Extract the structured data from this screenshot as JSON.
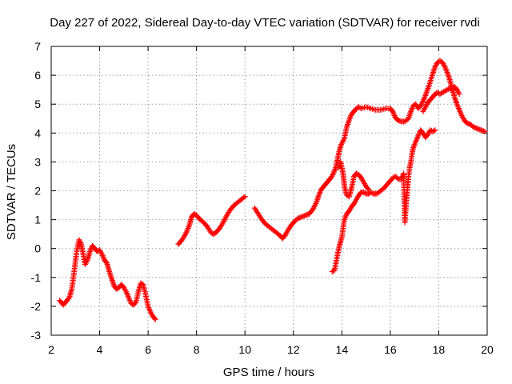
{
  "chart_data": {
    "type": "scatter",
    "title": "Day 227 of 2022, Sidereal Day-to-day VTEC variation (SDTVAR) for receiver rvdi",
    "xlabel": "GPS time / hours",
    "ylabel": "SDTVAR / TECUs",
    "xlim": [
      2,
      20
    ],
    "ylim": [
      -3,
      7
    ],
    "xticks": [
      "2",
      "4",
      "6",
      "8",
      "10",
      "12",
      "14",
      "16",
      "18",
      "20"
    ],
    "yticks": [
      "-3",
      "-2",
      "-1",
      "0",
      "1",
      "2",
      "3",
      "4",
      "5",
      "6",
      "7"
    ],
    "grid": true,
    "marker": "plus",
    "color": "#ff0000",
    "series": [
      {
        "x": [
          2.35,
          2.5,
          2.6,
          2.75,
          2.85,
          2.95,
          3.05,
          3.15,
          3.22,
          3.3,
          3.4,
          3.5,
          3.6,
          3.7,
          3.8,
          3.9,
          4.0,
          4.1,
          4.2,
          4.3,
          4.4,
          4.5,
          4.6,
          4.7,
          4.8,
          4.9,
          5.0,
          5.1,
          5.2,
          5.3,
          5.4,
          5.5,
          5.6,
          5.7,
          5.8,
          5.9,
          6.0,
          6.1,
          6.2,
          6.3
        ],
        "y": [
          -1.8,
          -1.95,
          -1.85,
          -1.7,
          -1.4,
          -0.8,
          -0.1,
          0.3,
          0.2,
          -0.1,
          -0.55,
          -0.4,
          -0.1,
          0.1,
          0.0,
          -0.1,
          -0.05,
          -0.2,
          -0.4,
          -0.5,
          -0.8,
          -1.05,
          -1.3,
          -1.4,
          -1.35,
          -1.25,
          -1.35,
          -1.5,
          -1.7,
          -1.9,
          -1.95,
          -1.85,
          -1.5,
          -1.2,
          -1.25,
          -1.6,
          -2.0,
          -2.2,
          -2.35,
          -2.45
        ]
      },
      {
        "x": [
          7.25,
          7.4,
          7.55,
          7.7,
          7.8,
          7.9,
          8.0,
          8.15,
          8.3,
          8.45,
          8.6,
          8.7,
          8.8,
          8.95,
          9.1,
          9.25,
          9.4,
          9.55,
          9.7,
          9.85,
          10.0
        ],
        "y": [
          0.15,
          0.3,
          0.5,
          0.8,
          1.1,
          1.2,
          1.15,
          1.0,
          0.9,
          0.75,
          0.55,
          0.5,
          0.55,
          0.7,
          0.9,
          1.15,
          1.35,
          1.5,
          1.6,
          1.7,
          1.8
        ]
      },
      {
        "x": [
          10.4,
          10.55,
          10.7,
          10.85,
          11.0,
          11.15,
          11.3,
          11.45,
          11.55,
          11.65,
          11.75,
          11.9,
          12.05,
          12.2,
          12.35,
          12.5,
          12.65,
          12.8,
          12.95,
          13.05,
          13.15,
          13.25,
          13.35,
          13.45,
          13.55,
          13.65,
          13.75,
          13.8,
          13.85,
          13.9,
          13.95,
          14.0,
          14.1,
          14.2,
          14.3,
          14.4,
          14.5,
          14.6,
          14.7,
          14.8,
          15.0,
          15.2,
          15.4,
          15.6,
          15.8,
          16.0,
          16.1,
          16.2,
          16.3,
          16.45,
          16.6,
          16.75,
          16.85,
          16.95,
          17.05,
          17.15,
          17.3,
          17.45,
          17.6,
          17.75,
          17.85,
          17.95,
          18.05,
          18.15,
          18.25,
          18.35,
          18.45,
          18.55,
          18.65,
          18.75,
          18.85,
          18.95,
          19.05,
          19.15,
          19.3,
          19.45,
          19.6,
          19.75,
          19.9
        ],
        "y": [
          1.4,
          1.2,
          1.0,
          0.85,
          0.75,
          0.65,
          0.55,
          0.45,
          0.35,
          0.45,
          0.6,
          0.8,
          0.95,
          1.05,
          1.1,
          1.15,
          1.2,
          1.35,
          1.6,
          1.85,
          2.05,
          2.15,
          2.25,
          2.35,
          2.45,
          2.6,
          2.8,
          3.0,
          3.2,
          3.4,
          3.55,
          3.65,
          3.8,
          4.2,
          4.45,
          4.65,
          4.75,
          4.85,
          4.9,
          4.85,
          4.9,
          4.85,
          4.8,
          4.8,
          4.85,
          4.85,
          4.75,
          4.55,
          4.45,
          4.4,
          4.4,
          4.5,
          4.75,
          4.95,
          5.0,
          4.85,
          5.0,
          5.3,
          5.65,
          6.05,
          6.3,
          6.45,
          6.5,
          6.45,
          6.3,
          6.1,
          5.85,
          5.55,
          5.25,
          5.0,
          4.8,
          4.6,
          4.45,
          4.35,
          4.3,
          4.2,
          4.15,
          4.1,
          4.05
        ]
      },
      {
        "x": [
          13.6,
          13.7,
          13.8,
          13.9,
          14.0,
          14.1,
          14.2,
          14.3,
          14.4,
          14.5,
          14.6,
          14.7,
          14.8,
          14.9,
          15.0,
          15.1,
          15.2,
          15.3,
          15.45,
          15.6,
          15.75,
          15.9,
          16.05,
          16.2,
          16.35,
          16.45,
          16.55,
          16.6,
          16.65,
          16.7,
          16.75,
          16.8,
          16.85,
          16.9,
          16.95,
          17.05,
          17.15,
          17.25,
          17.35,
          17.45,
          17.55,
          17.65,
          17.75,
          17.85
        ],
        "y": [
          -0.8,
          -0.75,
          -0.3,
          0.1,
          0.4,
          1.0,
          1.2,
          1.3,
          1.45,
          1.55,
          1.7,
          1.85,
          1.95,
          1.95,
          1.9,
          1.9,
          1.95,
          1.9,
          1.9,
          2.0,
          2.1,
          2.25,
          2.4,
          2.5,
          2.4,
          2.4,
          2.6,
          0.9,
          1.5,
          2.0,
          2.5,
          2.8,
          3.0,
          3.3,
          3.5,
          3.7,
          3.9,
          4.1,
          4.0,
          3.85,
          3.95,
          4.1,
          4.05,
          4.1
        ]
      },
      {
        "x": [
          13.85,
          13.95,
          14.05,
          14.12,
          14.2,
          14.3,
          14.4,
          14.5,
          14.6,
          14.7,
          14.8,
          14.9,
          15.0,
          15.1
        ],
        "y": [
          2.8,
          3.0,
          2.6,
          2.1,
          1.85,
          1.8,
          2.1,
          2.5,
          2.6,
          2.55,
          2.45,
          2.3,
          2.15,
          2.05
        ]
      },
      {
        "x": [
          17.35,
          17.45,
          17.55,
          17.65,
          17.75,
          17.85,
          17.95,
          18.05,
          18.15,
          18.25,
          18.35,
          18.45,
          18.55,
          18.65,
          18.75,
          18.85
        ],
        "y": [
          4.75,
          4.9,
          5.05,
          5.15,
          5.25,
          5.35,
          5.4,
          5.35,
          5.4,
          5.45,
          5.5,
          5.55,
          5.5,
          5.6,
          5.5,
          5.35
        ]
      }
    ]
  }
}
